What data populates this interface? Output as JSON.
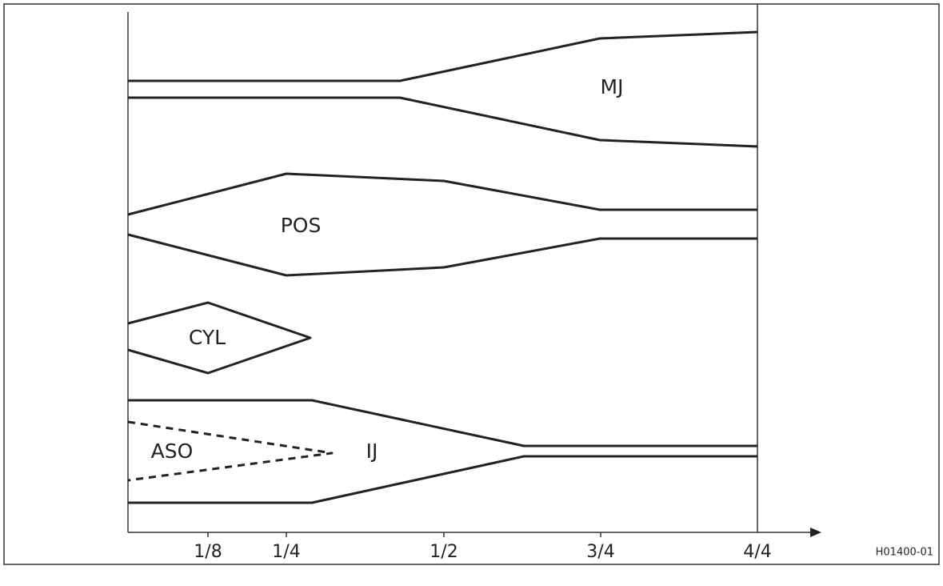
{
  "diagram": {
    "labels": {
      "mj": "MJ",
      "pos": "POS",
      "cyl": "CYL",
      "aso": "ASO",
      "ij": "IJ"
    },
    "x_ticks": [
      "1/8",
      "1/4",
      "1/2",
      "3/4",
      "4/4"
    ],
    "figure_id": "H01400-01"
  }
}
